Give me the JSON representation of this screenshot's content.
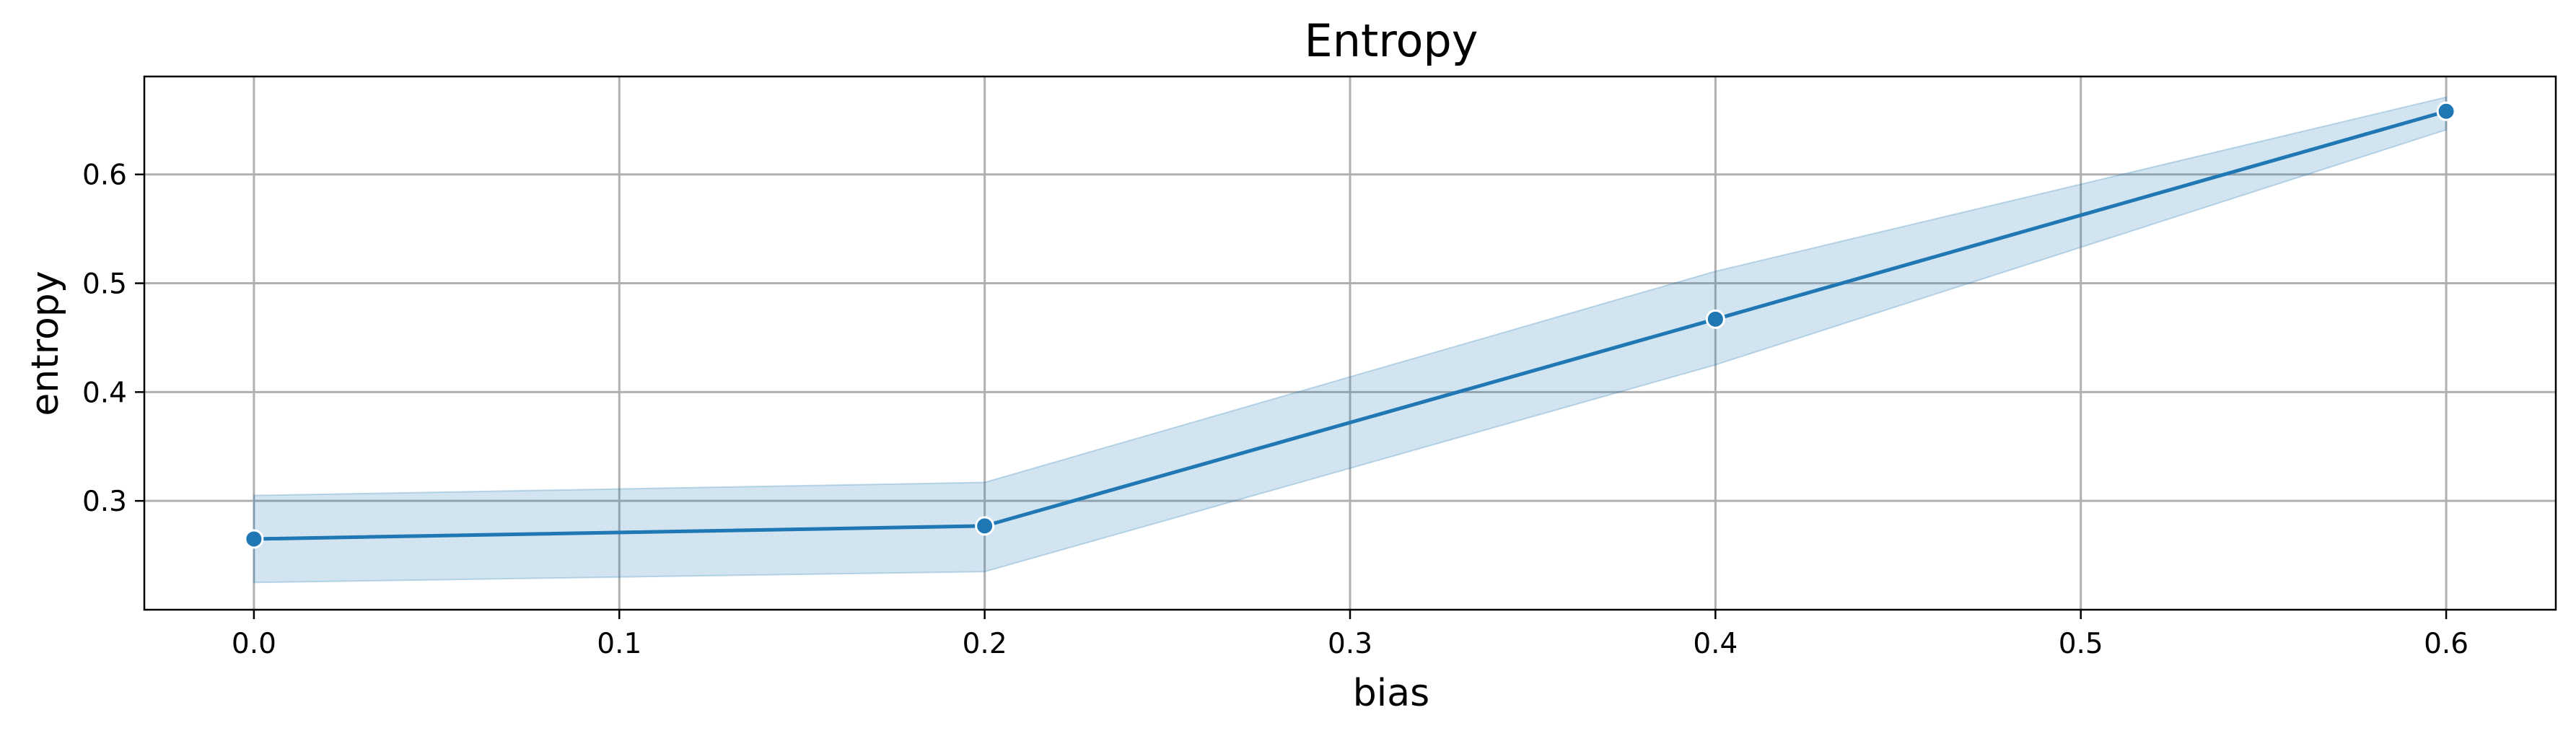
{
  "chart_data": {
    "type": "line",
    "title": "Entropy",
    "xlabel": "bias",
    "ylabel": "entropy",
    "xlim": [
      -0.03,
      0.63
    ],
    "ylim": [
      0.2,
      0.69
    ],
    "xticks": [
      "0.0",
      "0.1",
      "0.2",
      "0.3",
      "0.4",
      "0.5",
      "0.6"
    ],
    "yticks": [
      "0.3",
      "0.4",
      "0.5",
      "0.6"
    ],
    "grid": true,
    "color": "#1f77b4",
    "band_color": "#1f77b4",
    "series": [
      {
        "x": [
          0.0,
          0.2,
          0.4,
          0.6
        ],
        "y": [
          0.265,
          0.277,
          0.467,
          0.658
        ],
        "y_lower": [
          0.225,
          0.235,
          0.425,
          0.641
        ],
        "y_upper": [
          0.305,
          0.317,
          0.511,
          0.671
        ]
      }
    ]
  }
}
